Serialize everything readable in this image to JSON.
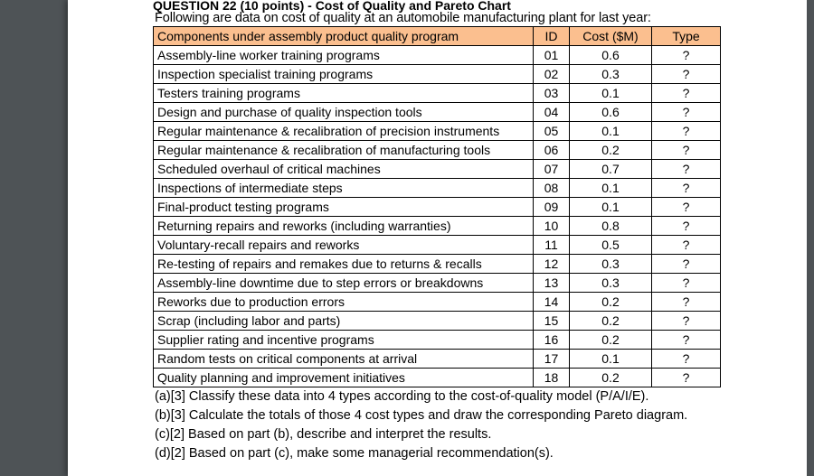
{
  "document": {
    "title": "QUESTION 22 (10 points) - Cost of Quality and Pareto Chart",
    "intro": "Following are data on cost of quality at an automobile manufacturing plant for last year:",
    "table": {
      "headers": [
        "Components under assembly product quality program",
        "ID",
        "Cost ($M)",
        "Type"
      ],
      "rows": [
        [
          "Assembly-line worker training programs",
          "01",
          "0.6",
          "?"
        ],
        [
          "Inspection specialist training programs",
          "02",
          "0.3",
          "?"
        ],
        [
          "Testers training programs",
          "03",
          "0.1",
          "?"
        ],
        [
          "Design and purchase of quality inspection tools",
          "04",
          "0.6",
          "?"
        ],
        [
          "Regular maintenance & recalibration of precision instruments",
          "05",
          "0.1",
          "?"
        ],
        [
          "Regular maintenance & recalibration of manufacturing tools",
          "06",
          "0.2",
          "?"
        ],
        [
          "Scheduled overhaul of critical machines",
          "07",
          "0.7",
          "?"
        ],
        [
          "Inspections of intermediate steps",
          "08",
          "0.1",
          "?"
        ],
        [
          "Final-product testing programs",
          "09",
          "0.1",
          "?"
        ],
        [
          "Returning repairs and reworks (including warranties)",
          "10",
          "0.8",
          "?"
        ],
        [
          "Voluntary-recall repairs and reworks",
          "11",
          "0.5",
          "?"
        ],
        [
          "Re-testing of repairs and remakes due to returns & recalls",
          "12",
          "0.3",
          "?"
        ],
        [
          "Assembly-line downtime due to step errors or breakdowns",
          "13",
          "0.3",
          "?"
        ],
        [
          "Reworks due to production errors",
          "14",
          "0.2",
          "?"
        ],
        [
          "Scrap (including labor and parts)",
          "15",
          "0.2",
          "?"
        ],
        [
          "Supplier rating and incentive programs",
          "16",
          "0.2",
          "?"
        ],
        [
          "Random tests on critical components at arrival",
          "17",
          "0.1",
          "?"
        ],
        [
          "Quality planning and improvement initiatives",
          "18",
          "0.2",
          "?"
        ]
      ]
    },
    "questions": [
      "(a)[3] Classify these data into 4 types according to the cost-of-quality model (P/A/I/E).",
      "(b)[3] Calculate the totals of those 4 cost types and draw the corresponding Pareto diagram.",
      "(c)[2] Based on part (b), describe and interpret the results.",
      "(d)[2] Based on part (c), make some managerial recommendation(s)."
    ],
    "colors": {
      "header_fill": "#fbbf8f",
      "background": "#4e5356"
    }
  }
}
